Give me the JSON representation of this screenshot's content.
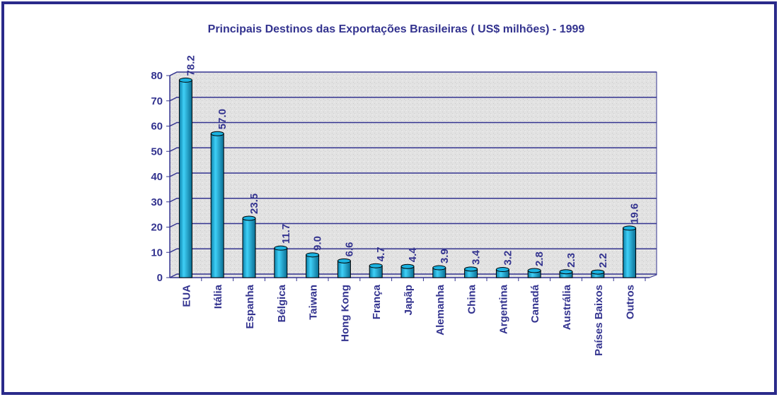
{
  "chart_data": {
    "type": "bar",
    "title": "Principais Destinos das Exportações Brasileiras ( US$ milhões) - 1999",
    "categories": [
      "EUA",
      "Itália",
      "Espanha",
      "Bélgica",
      "Taiwan",
      "Hong Kong",
      "França",
      "Japãp",
      "Alemanha",
      "China",
      "Argentina",
      "Canadá",
      "Austrália",
      "Países Baixos",
      "Outros"
    ],
    "values": [
      78.2,
      57.0,
      23.5,
      11.7,
      9.0,
      6.6,
      4.7,
      4.4,
      3.9,
      3.4,
      3.2,
      2.8,
      2.3,
      2.2,
      19.6
    ],
    "value_labels": [
      "78.2",
      "57.0",
      "23.5",
      "11.7",
      "9.0",
      "6.6",
      "4.7",
      "4.4",
      "3.9",
      "3.4",
      "3.2",
      "2.8",
      "2.3",
      "2.2",
      "19.6"
    ],
    "color": "#1ab2e0",
    "ylim": [
      0,
      80
    ],
    "yticks": [
      0,
      10,
      20,
      30,
      40,
      50,
      60,
      70,
      80
    ],
    "grid": true
  }
}
